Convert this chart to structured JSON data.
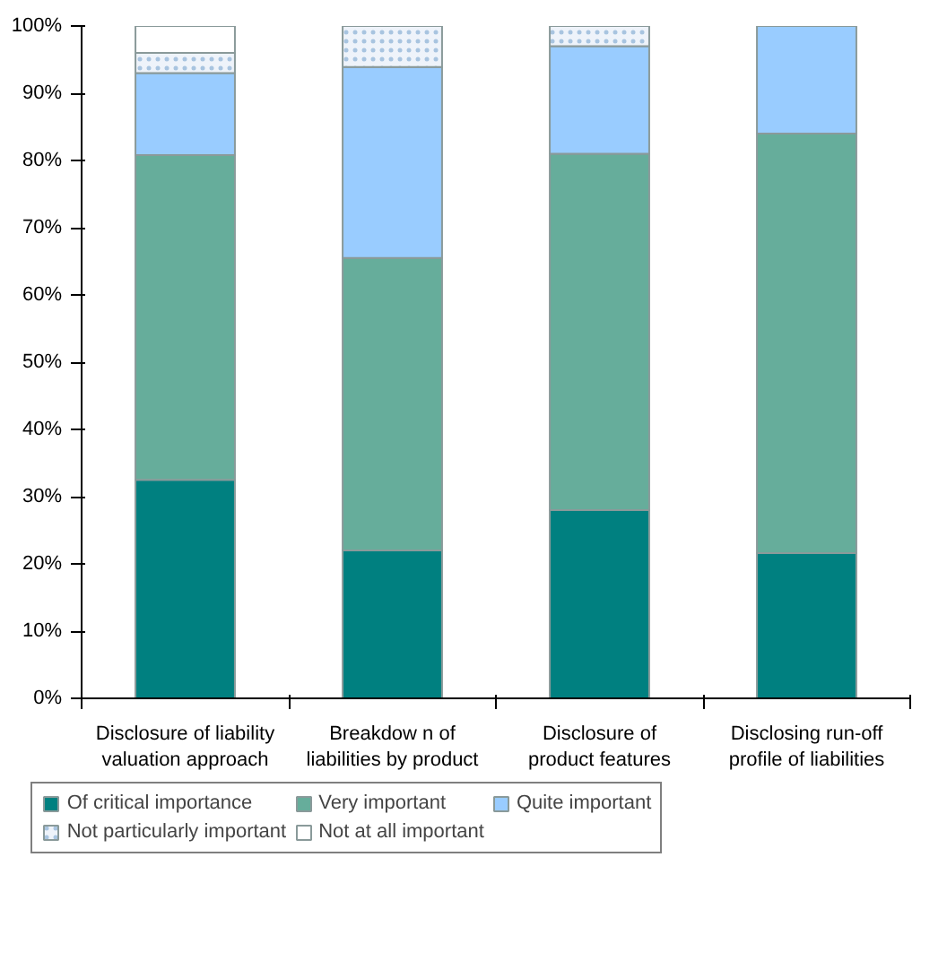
{
  "chart_data": {
    "type": "bar",
    "stacked": true,
    "categories": [
      "Disclosure of liability valuation approach",
      "Breakdow n of liabilities by product",
      "Disclosure of product features",
      "Disclosing run-off profile of liabilities"
    ],
    "series": [
      {
        "name": "Of critical importance",
        "color": "#008080",
        "values": [
          32.5,
          22,
          28,
          21.6
        ]
      },
      {
        "name": "Very important",
        "color": "#66ad9b",
        "values": [
          48.3,
          43.5,
          53,
          62.4
        ]
      },
      {
        "name": "Quite important",
        "color": "#99ccff",
        "values": [
          12.2,
          28.4,
          16,
          16
        ]
      },
      {
        "name": "Not particularly important",
        "color": "#eef3fa",
        "values": [
          3,
          6.1,
          3,
          null
        ]
      },
      {
        "name": "Not at all important",
        "color": "#ffffff",
        "values": [
          4,
          null,
          null,
          null
        ]
      }
    ],
    "ylim": [
      0,
      100
    ],
    "yticks": [
      {
        "value": 0,
        "label": "0%"
      },
      {
        "value": 10,
        "label": "10%"
      },
      {
        "value": 20,
        "label": "20%"
      },
      {
        "value": 30,
        "label": "30%"
      },
      {
        "value": 40,
        "label": "40%"
      },
      {
        "value": 50,
        "label": "50%"
      },
      {
        "value": 60,
        "label": "60%"
      },
      {
        "value": 70,
        "label": "70%"
      },
      {
        "value": 80,
        "label": "80%"
      },
      {
        "value": 90,
        "label": "90%"
      },
      {
        "value": 100,
        "label": "100%"
      }
    ],
    "grid": false,
    "legend": "bottom"
  }
}
